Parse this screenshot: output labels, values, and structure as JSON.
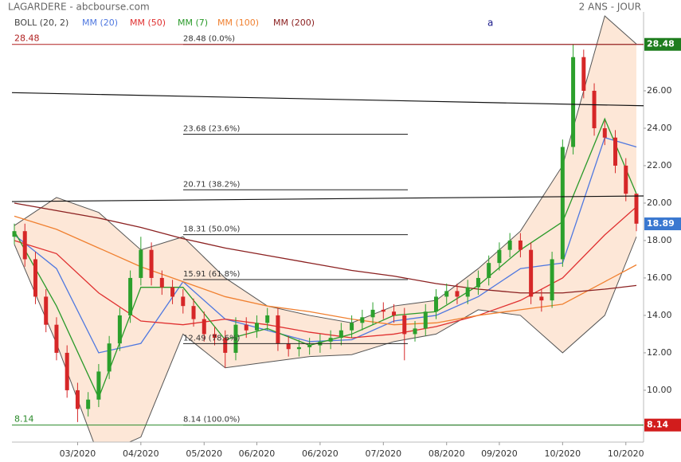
{
  "chart_data": {
    "type": "candlestick",
    "title": "LAGARDERE - abcbourse.com",
    "period": "2 ANS - JOUR",
    "annotation": "a",
    "ylim": [
      7.23,
      30
    ],
    "yticks": [
      {
        "value": 10,
        "label": "10.00"
      },
      {
        "value": 12,
        "label": "12.00"
      },
      {
        "value": 14,
        "label": "14.00"
      },
      {
        "value": 16,
        "label": "16.00"
      },
      {
        "value": 18,
        "label": "18.00"
      },
      {
        "value": 20,
        "label": "20.00"
      },
      {
        "value": 22,
        "label": "22.00"
      },
      {
        "value": 24,
        "label": "24.00"
      },
      {
        "value": 26,
        "label": "26.00"
      }
    ],
    "xlim": [
      0,
      59
    ],
    "xticks": [
      {
        "value": 6,
        "label": "03/2020"
      },
      {
        "value": 12,
        "label": "04/2020"
      },
      {
        "value": 18,
        "label": "05/2020"
      },
      {
        "value": 23,
        "label": "06/2020"
      },
      {
        "value": 29,
        "label": "06/2020"
      },
      {
        "value": 35,
        "label": "07/2020"
      },
      {
        "value": 41,
        "label": "08/2020"
      },
      {
        "value": 46,
        "label": "09/2020"
      },
      {
        "value": 52,
        "label": "10/2020"
      },
      {
        "value": 58,
        "label": "10/2020"
      }
    ],
    "up_color": "#2ca02c",
    "down_color": "#d62728",
    "candles": {
      "open": [
        18.2,
        18.5,
        17.0,
        15.0,
        13.5,
        12.0,
        10.0,
        9.0,
        9.5,
        11.0,
        12.5,
        14.0,
        16.0,
        17.5,
        16.0,
        15.5,
        15.0,
        14.5,
        13.8,
        13.0,
        12.8,
        12.0,
        13.5,
        13.2,
        13.6,
        14.0,
        12.5,
        12.2,
        12.3,
        12.4,
        12.6,
        12.8,
        13.2,
        13.6,
        13.9,
        14.3,
        14.2,
        14.0,
        13.0,
        13.3,
        14.2,
        15.0,
        15.3,
        15.0,
        15.5,
        16.0,
        16.8,
        17.5,
        18.0,
        17.5,
        15.0,
        14.8,
        17.0,
        23.0,
        27.8,
        26.0,
        24.0,
        23.5,
        22.0,
        20.5
      ],
      "high": [
        18.9,
        18.9,
        17.4,
        15.4,
        13.9,
        12.4,
        10.4,
        9.9,
        11.4,
        12.9,
        14.4,
        16.4,
        18.2,
        17.9,
        16.4,
        15.9,
        15.4,
        14.9,
        14.2,
        13.4,
        13.2,
        13.9,
        13.9,
        14.0,
        14.4,
        14.4,
        12.9,
        12.7,
        12.8,
        13.0,
        13.2,
        13.6,
        14.0,
        14.3,
        14.7,
        14.7,
        14.6,
        14.4,
        13.7,
        14.6,
        15.4,
        15.7,
        15.7,
        15.9,
        16.4,
        17.2,
        17.9,
        18.4,
        18.4,
        17.9,
        15.4,
        17.4,
        23.4,
        28.48,
        28.2,
        26.4,
        24.4,
        23.9,
        22.4,
        20.5
      ],
      "low": [
        17.8,
        16.6,
        14.6,
        13.1,
        11.6,
        9.6,
        8.3,
        8.6,
        9.1,
        10.6,
        12.1,
        13.6,
        15.6,
        15.6,
        15.1,
        14.6,
        14.1,
        13.4,
        12.6,
        12.4,
        11.2,
        11.6,
        12.8,
        12.8,
        13.2,
        12.1,
        11.8,
        11.8,
        11.9,
        12.0,
        12.2,
        12.4,
        12.8,
        13.2,
        13.5,
        13.8,
        13.6,
        11.6,
        12.6,
        12.9,
        13.8,
        14.6,
        14.6,
        14.6,
        15.1,
        15.6,
        16.4,
        17.1,
        17.1,
        14.6,
        14.2,
        14.4,
        16.6,
        22.6,
        25.6,
        23.6,
        23.1,
        21.6,
        20.1,
        18.5
      ],
      "close": [
        18.5,
        17.0,
        15.0,
        13.5,
        12.0,
        10.0,
        9.0,
        9.5,
        11.0,
        12.5,
        14.0,
        16.0,
        17.5,
        16.0,
        15.5,
        15.0,
        14.5,
        13.8,
        13.0,
        12.8,
        12.0,
        13.5,
        13.2,
        13.6,
        14.0,
        12.5,
        12.2,
        12.3,
        12.4,
        12.6,
        12.8,
        13.2,
        13.6,
        13.9,
        14.3,
        14.2,
        14.0,
        13.0,
        13.3,
        14.2,
        15.0,
        15.3,
        15.0,
        15.5,
        16.0,
        16.8,
        17.5,
        18.0,
        17.5,
        15.0,
        14.8,
        17.0,
        23.0,
        27.8,
        26.0,
        24.0,
        23.5,
        22.0,
        20.5,
        18.9
      ]
    },
    "line_x": [
      0,
      4,
      8,
      12,
      16,
      20,
      24,
      28,
      32,
      36,
      40,
      44,
      48,
      52,
      56,
      59
    ],
    "bollinger": {
      "name": "BOLL (20, 2)",
      "color": "#555555",
      "fill": "#fde3d0",
      "upper": [
        18.8,
        20.3,
        19.5,
        17.5,
        18.2,
        16.0,
        14.5,
        14.0,
        13.6,
        14.5,
        14.8,
        16.5,
        18.5,
        22.0,
        30.0,
        28.5
      ],
      "lower": [
        17.8,
        12.5,
        6.5,
        7.5,
        13.0,
        11.2,
        11.5,
        11.8,
        11.9,
        12.6,
        13.0,
        14.3,
        14.0,
        12.0,
        14.0,
        18.2
      ]
    },
    "series": [
      {
        "name": "MM (20)",
        "color": "#4f78e0",
        "values": [
          18.3,
          16.5,
          12.0,
          12.5,
          15.8,
          13.8,
          13.2,
          12.6,
          12.7,
          13.7,
          14.0,
          15.0,
          16.5,
          16.8,
          23.5,
          23.0
        ]
      },
      {
        "name": "MM (50)",
        "color": "#e03030",
        "values": [
          18.0,
          17.3,
          15.2,
          13.7,
          13.5,
          13.8,
          13.5,
          13.1,
          12.8,
          13.0,
          13.4,
          14.0,
          14.8,
          16.0,
          18.3,
          19.8
        ]
      },
      {
        "name": "MM (7)",
        "color": "#2a9a2a",
        "values": [
          18.5,
          14.5,
          9.6,
          15.5,
          15.5,
          12.7,
          13.3,
          12.4,
          13.0,
          14.0,
          14.2,
          15.6,
          17.5,
          19.0,
          24.5,
          20.5
        ]
      },
      {
        "name": "MM (100)",
        "color": "#f08030",
        "values": [
          19.3,
          18.6,
          17.6,
          16.6,
          15.8,
          15.0,
          14.5,
          14.2,
          13.8,
          13.5,
          13.6,
          14.0,
          14.3,
          14.6,
          15.8,
          16.7
        ]
      },
      {
        "name": "MM (200)",
        "color": "#8b2020",
        "values": [
          20.0,
          19.6,
          19.2,
          18.7,
          18.1,
          17.6,
          17.2,
          16.8,
          16.4,
          16.1,
          15.7,
          15.4,
          15.2,
          15.2,
          15.4,
          15.6
        ]
      }
    ],
    "fib_levels": [
      {
        "value": 28.48,
        "label": "28.48  (0.0%)"
      },
      {
        "value": 23.68,
        "label": "23.68  (23.6%)"
      },
      {
        "value": 20.71,
        "label": "20.71  (38.2%)"
      },
      {
        "value": 18.31,
        "label": "18.31  (50.0%)"
      },
      {
        "value": 15.91,
        "label": "15.91  (61.8%)"
      },
      {
        "value": 12.49,
        "label": "12.49  (78.6%)"
      },
      {
        "value": 8.14,
        "label": "8.14  (100.0%)"
      }
    ],
    "trendlines": [
      {
        "values": [
          25.9,
          25.2
        ]
      },
      {
        "values": [
          20.08,
          20.38
        ]
      }
    ],
    "left_labels": [
      {
        "value": 28.48,
        "color": "#b02020"
      },
      {
        "value": 8.14,
        "color": "#2a8a2a"
      }
    ],
    "level_markers": [
      {
        "value": 28.48,
        "color": "#1e7d1e"
      },
      {
        "value": 18.89,
        "color": "#3a78d0"
      },
      {
        "value": 8.14,
        "color": "#d21c1c"
      }
    ]
  }
}
